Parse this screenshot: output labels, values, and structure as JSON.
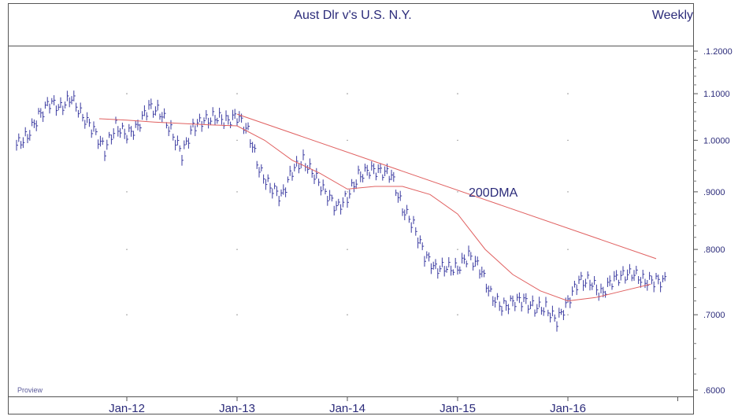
{
  "header": {
    "title": "Aust Dlr v's U.S. N.Y.",
    "period": "Weekly"
  },
  "watermark": "Proview",
  "colors": {
    "bars": "#3a3aa0",
    "moving_average": "#e06060",
    "trendline": "#e06060",
    "text": "#2b2b7a",
    "frame": "#555555"
  },
  "chart_data": {
    "type": "line",
    "title": "Aust Dlr v's U.S. N.Y.",
    "subtitle": "Weekly",
    "xlabel": "",
    "ylabel": "",
    "y_scale": "log",
    "ylim": [
      0.59,
      1.22
    ],
    "xlim": [
      2011.0,
      2017.4
    ],
    "grid": true,
    "y_ticks": [
      {
        "value": 1.2,
        "label": ".1.2000"
      },
      {
        "value": 1.1,
        "label": "1.1000"
      },
      {
        "value": 1.0,
        "label": "1.0000"
      },
      {
        "value": 0.9,
        "label": ".9000"
      },
      {
        "value": 0.8,
        "label": ".8000"
      },
      {
        "value": 0.7,
        "label": ".7000"
      },
      {
        "value": 0.6,
        "label": ".6000"
      }
    ],
    "x_ticks": [
      {
        "value": 2012.0,
        "label": "Jan-12"
      },
      {
        "value": 2013.0,
        "label": "Jan-13"
      },
      {
        "value": 2014.0,
        "label": "Jan-14"
      },
      {
        "value": 2015.0,
        "label": "Jan-15"
      },
      {
        "value": 2016.0,
        "label": "Jan-16"
      }
    ],
    "annotations": [
      {
        "text": "200DMA",
        "x": 2015.1,
        "y": 0.9
      }
    ],
    "series": [
      {
        "name": "price",
        "kind": "bars",
        "x": [
          2011.0,
          2011.1,
          2011.2,
          2011.3,
          2011.4,
          2011.5,
          2011.6,
          2011.7,
          2011.8,
          2011.9,
          2012.0,
          2012.1,
          2012.2,
          2012.3,
          2012.4,
          2012.5,
          2012.6,
          2012.7,
          2012.8,
          2012.9,
          2013.0,
          2013.1,
          2013.2,
          2013.3,
          2013.4,
          2013.5,
          2013.6,
          2013.7,
          2013.8,
          2013.9,
          2014.0,
          2014.1,
          2014.2,
          2014.3,
          2014.4,
          2014.5,
          2014.6,
          2014.7,
          2014.8,
          2014.9,
          2015.0,
          2015.1,
          2015.2,
          2015.3,
          2015.4,
          2015.5,
          2015.6,
          2015.7,
          2015.8,
          2015.9,
          2016.0,
          2016.1,
          2016.2,
          2016.3,
          2016.4,
          2016.5,
          2016.6,
          2016.7,
          2016.8
        ],
        "values": [
          0.99,
          1.01,
          1.05,
          1.08,
          1.07,
          1.09,
          1.05,
          1.02,
          0.98,
          1.03,
          1.01,
          1.03,
          1.07,
          1.06,
          1.02,
          0.97,
          1.03,
          1.04,
          1.05,
          1.04,
          1.05,
          1.02,
          0.94,
          0.91,
          0.89,
          0.94,
          0.96,
          0.93,
          0.9,
          0.87,
          0.89,
          0.93,
          0.94,
          0.94,
          0.93,
          0.87,
          0.84,
          0.79,
          0.77,
          0.77,
          0.77,
          0.79,
          0.77,
          0.73,
          0.71,
          0.72,
          0.72,
          0.71,
          0.71,
          0.69,
          0.72,
          0.75,
          0.75,
          0.73,
          0.75,
          0.76,
          0.76,
          0.75,
          0.75
        ]
      },
      {
        "name": "200DMA",
        "kind": "line",
        "x": [
          2011.75,
          2012.0,
          2012.25,
          2012.5,
          2012.75,
          2013.0,
          2013.25,
          2013.5,
          2013.75,
          2014.0,
          2014.25,
          2014.5,
          2014.75,
          2015.0,
          2015.25,
          2015.5,
          2015.75,
          2016.0,
          2016.25,
          2016.5,
          2016.75
        ],
        "values": [
          1.045,
          1.042,
          1.038,
          1.035,
          1.032,
          1.03,
          1.0,
          0.96,
          0.935,
          0.905,
          0.91,
          0.91,
          0.895,
          0.86,
          0.8,
          0.76,
          0.735,
          0.72,
          0.725,
          0.735,
          0.745
        ]
      },
      {
        "name": "trendline",
        "kind": "line",
        "x": [
          2013.0,
          2016.8
        ],
        "values": [
          1.055,
          0.785
        ]
      }
    ]
  }
}
